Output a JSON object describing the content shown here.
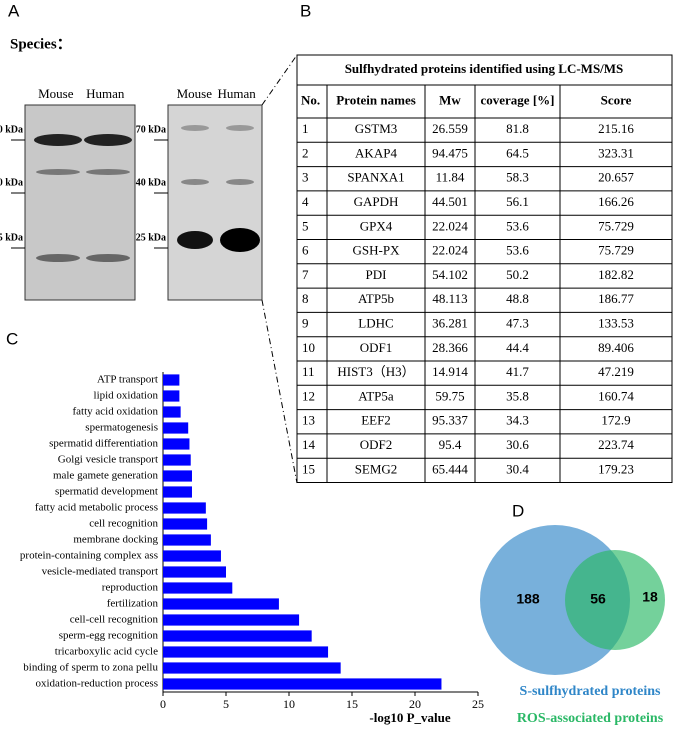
{
  "panel_labels": {
    "a": "A",
    "b": "B",
    "c": "C",
    "d": "D"
  },
  "blot": {
    "species_label": "Species：",
    "lanes": [
      "Mouse",
      "Human"
    ],
    "markers": [
      "70 kDa",
      "40 kDa",
      "25 kDa"
    ]
  },
  "table": {
    "title": "Sulfhydrated proteins identified using LC-MS/MS",
    "columns": [
      "No.",
      "Protein names",
      "Mw",
      "coverage [%]",
      "Score"
    ],
    "rows": [
      [
        "1",
        "GSTM3",
        "26.559",
        "81.8",
        "215.16"
      ],
      [
        "2",
        "AKAP4",
        "94.475",
        "64.5",
        "323.31"
      ],
      [
        "3",
        "SPANXA1",
        "11.84",
        "58.3",
        "20.657"
      ],
      [
        "4",
        "GAPDH",
        "44.501",
        "56.1",
        "166.26"
      ],
      [
        "5",
        "GPX4",
        "22.024",
        "53.6",
        "75.729"
      ],
      [
        "6",
        "GSH-PX",
        "22.024",
        "53.6",
        "75.729"
      ],
      [
        "7",
        "PDI",
        "54.102",
        "50.2",
        "182.82"
      ],
      [
        "8",
        "ATP5b",
        "48.113",
        "48.8",
        "186.77"
      ],
      [
        "9",
        "LDHC",
        "36.281",
        "47.3",
        "133.53"
      ],
      [
        "10",
        "ODF1",
        "28.366",
        "44.4",
        "89.406"
      ],
      [
        "11",
        "HIST3（H3）",
        "14.914",
        "41.7",
        "47.219"
      ],
      [
        "12",
        "ATP5a",
        "59.75",
        "35.8",
        "160.74"
      ],
      [
        "13",
        "EEF2",
        "95.337",
        "34.3",
        "172.9"
      ],
      [
        "14",
        "ODF2",
        "95.4",
        "30.6",
        "223.74"
      ],
      [
        "15",
        "SEMG2",
        "65.444",
        "30.4",
        "179.23"
      ]
    ]
  },
  "chart_data": [
    {
      "type": "bar",
      "orientation": "horizontal",
      "color": "#0000ff",
      "xlabel": "-log10 P_value",
      "categories": [
        "ATP transport",
        "lipid oxidation",
        "fatty acid oxidation",
        "spermatogenesis",
        "spermatid differentiation",
        "Golgi vesicle transport",
        "male gamete generation",
        "spermatid development",
        "fatty acid metabolic process",
        "cell recognition",
        "membrane docking",
        "protein-containing complex ass",
        "vesicle-mediated transport",
        "reproduction",
        "fertilization",
        "cell-cell recognition",
        "sperm-egg recognition",
        "tricarboxylic acid cycle",
        "binding of sperm to zona pellu",
        "oxidation-reduction process"
      ],
      "values": [
        1.3,
        1.3,
        1.4,
        2.0,
        2.1,
        2.2,
        2.3,
        2.3,
        3.4,
        3.5,
        3.8,
        4.6,
        5.0,
        5.5,
        9.2,
        10.8,
        11.8,
        13.1,
        14.1,
        22.1
      ],
      "xlim": [
        0,
        25
      ],
      "xticks": [
        0,
        5,
        10,
        15,
        20,
        25
      ]
    },
    {
      "type": "venn",
      "sets": [
        {
          "name": "S-sulfhydrated proteins",
          "color": "#2f86c8",
          "only": 188
        },
        {
          "name": "ROS-associated proteins",
          "color": "#2ab866",
          "only": 18
        }
      ],
      "intersection": 56
    }
  ]
}
